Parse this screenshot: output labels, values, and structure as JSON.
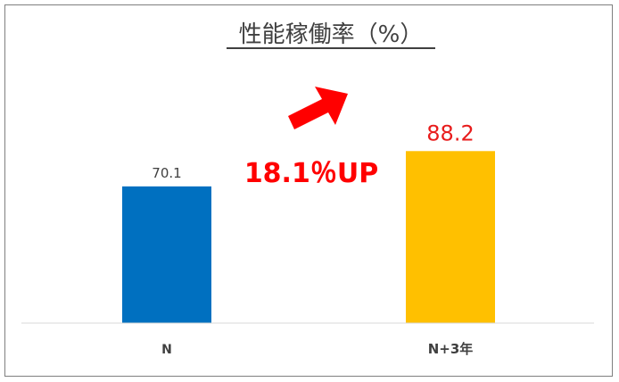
{
  "chart_data": {
    "type": "bar",
    "title": "性能稼働率（%）",
    "categories": [
      "N",
      "N+3年"
    ],
    "values": [
      70.1,
      88.2
    ],
    "value_labels": [
      "70.1",
      "88.2"
    ],
    "bar_colors": [
      "#0070C0",
      "#FFC000"
    ],
    "value_label_colors": [
      "#404040",
      "#E81C1C"
    ],
    "ylim": [
      0,
      100
    ],
    "grid": false,
    "legend": "none",
    "annotation": {
      "text": "18.1％UP",
      "color": "#FF0000",
      "arrow": "right-up-arrow-icon"
    }
  }
}
